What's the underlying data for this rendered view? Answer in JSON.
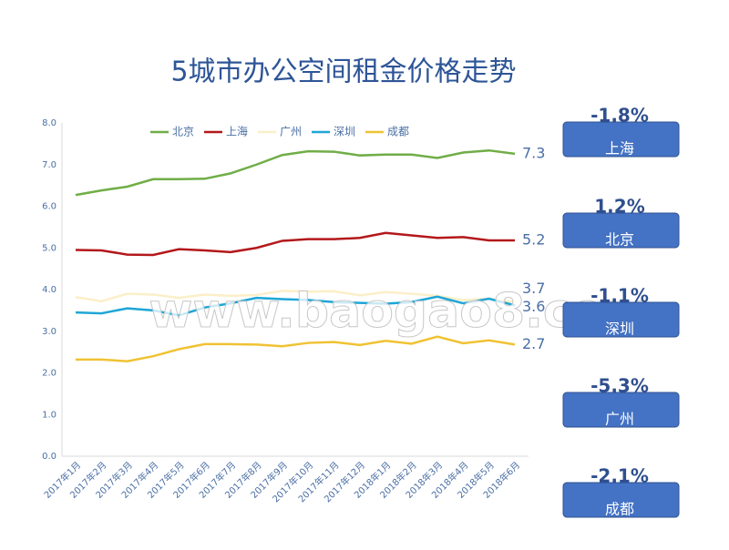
{
  "chart_data": {
    "type": "line",
    "title": "5城市办公空间租金价格走势",
    "watermark": "www.baogao8.com",
    "categories": [
      "2017年1月",
      "2017年2月",
      "2017年3月",
      "2017年4月",
      "2017年5月",
      "2017年6月",
      "2017年7月",
      "2017年8月",
      "2017年9月",
      "2017年10月",
      "2017年11月",
      "2017年12月",
      "2018年1月",
      "2018年2月",
      "2018年3月",
      "2018年4月",
      "2018年5月",
      "2018年6月"
    ],
    "series": [
      {
        "name": "北京",
        "color": "#70ad47",
        "end_label": "7.3",
        "values": [
          6.27,
          6.38,
          6.47,
          6.65,
          6.65,
          6.66,
          6.79,
          7.0,
          7.23,
          7.32,
          7.31,
          7.22,
          7.24,
          7.24,
          7.16,
          7.29,
          7.34,
          7.26
        ]
      },
      {
        "name": "上海",
        "color": "#b3181b",
        "end_label": "5.2",
        "values": [
          4.95,
          4.94,
          4.84,
          4.83,
          4.97,
          4.94,
          4.9,
          5.0,
          5.17,
          5.21,
          5.21,
          5.24,
          5.36,
          5.3,
          5.24,
          5.26,
          5.18,
          5.18
        ]
      },
      {
        "name": "广州",
        "color": "#fbefc8",
        "end_label": "3.7",
        "values": [
          3.82,
          3.72,
          3.9,
          3.88,
          3.8,
          3.88,
          3.85,
          3.87,
          3.97,
          3.95,
          3.96,
          3.86,
          3.94,
          3.9,
          3.85,
          3.75,
          3.78,
          3.7
        ]
      },
      {
        "name": "深圳",
        "color": "#1ea6d6",
        "end_label": "3.6",
        "values": [
          3.45,
          3.43,
          3.55,
          3.5,
          3.38,
          3.57,
          3.67,
          3.8,
          3.77,
          3.75,
          3.7,
          3.68,
          3.66,
          3.7,
          3.83,
          3.67,
          3.78,
          3.62
        ]
      },
      {
        "name": "成都",
        "color": "#f0c233",
        "end_label": "2.7",
        "values": [
          2.32,
          2.32,
          2.28,
          2.4,
          2.57,
          2.69,
          2.69,
          2.68,
          2.64,
          2.72,
          2.74,
          2.67,
          2.77,
          2.7,
          2.87,
          2.71,
          2.78,
          2.68
        ]
      }
    ],
    "ylim": [
      0,
      8
    ],
    "yticks": [
      {
        "value": 0,
        "label": "0.0"
      },
      {
        "value": 1,
        "label": "1.0"
      },
      {
        "value": 2,
        "label": "2.0"
      },
      {
        "value": 3,
        "label": "3.0"
      },
      {
        "value": 4,
        "label": "4.0"
      },
      {
        "value": 5,
        "label": "5.0"
      },
      {
        "value": 6,
        "label": "6.0"
      },
      {
        "value": 7,
        "label": "7.0"
      },
      {
        "value": 8,
        "label": "8.0"
      }
    ],
    "grid": false,
    "legend": "top",
    "panels": [
      {
        "change": "-1.8%",
        "city": "上海"
      },
      {
        "change": "1.2%",
        "city": "北京"
      },
      {
        "change": "-1.1%",
        "city": "深圳"
      },
      {
        "change": "-5.3%",
        "city": "广州"
      },
      {
        "change": "-2.1%",
        "city": "成都"
      }
    ]
  }
}
